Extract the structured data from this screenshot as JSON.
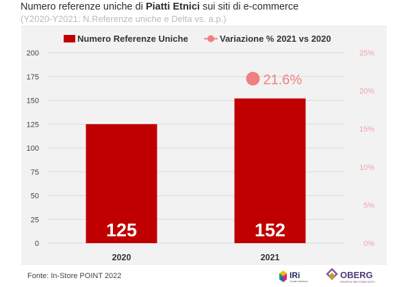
{
  "header": {
    "title_parts": [
      "Numero referenze uniche",
      " di ",
      "Piatti Etnici",
      " sui siti di ",
      "e-commerce"
    ],
    "subtitle": "(Y2020-Y2021: N.Referenze uniche e Delta vs. a.p.)"
  },
  "footer": {
    "source": "Fonte: In-Store POINT 2022",
    "logo_iri_text": "IRi",
    "logo_iri_tagline": "Growth delivered.",
    "logo_oberg_text": "OBERG",
    "logo_oberg_tagline": "PEOPLE BEYOND DATA"
  },
  "colors": {
    "bar": "#c00000",
    "dot": "#f08080",
    "axis_text": "#444444",
    "secondary_axis_text": "#f4a0a0"
  },
  "chart_data": {
    "type": "bar",
    "categories": [
      "2020",
      "2021"
    ],
    "series": [
      {
        "name": "Numero Referenze Uniche",
        "axis": "left",
        "values": [
          125,
          152
        ],
        "data_labels": [
          "125",
          "152"
        ]
      },
      {
        "name": "Variazione % 2021 vs 2020",
        "axis": "right",
        "marker": "circle",
        "values": [
          null,
          21.6
        ],
        "data_labels": [
          "",
          "21.6%"
        ]
      }
    ],
    "ylim": [
      0,
      200
    ],
    "yticks": [
      0,
      25,
      50,
      75,
      100,
      125,
      150,
      175,
      200
    ],
    "ytick_labels": [
      "0",
      "25",
      "50",
      "75",
      "100",
      "125",
      "150",
      "175",
      "200"
    ],
    "y2lim": [
      0,
      25
    ],
    "y2ticks": [
      0,
      5,
      10,
      15,
      20,
      25
    ],
    "y2tick_labels": [
      "0%",
      "5%",
      "10%",
      "15%",
      "20%",
      "25%"
    ],
    "grid": true,
    "legend": "top"
  }
}
